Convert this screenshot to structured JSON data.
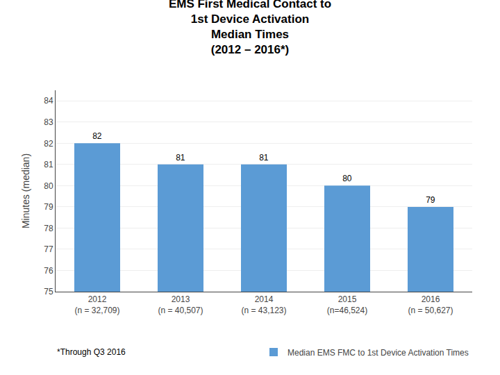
{
  "chart_data": {
    "type": "bar",
    "title": "EMS First Medical Contact to\n1st Device Activation\nMedian Times\n(2012 – 2016*)",
    "categories": [
      "2012\n(n = 32,709)",
      "2013\n(n = 40,507)",
      "2014\n(n = 43,123)",
      "2015\n(n=46,524)",
      "2016\n(n = 50,627)"
    ],
    "series": [
      {
        "name": "Median EMS FMC to 1st Device Activation Times",
        "color": "#5b9bd5",
        "values": [
          82,
          81,
          81,
          80,
          79
        ]
      }
    ],
    "ylabel": "Minutes (median)",
    "annotations": [
      "*Through Q3 2016"
    ],
    "ylim": [
      75,
      84.5
    ],
    "yticks": [
      75,
      76,
      77,
      78,
      79,
      80,
      81,
      82,
      83,
      84
    ],
    "grid": true,
    "legend": "bottom",
    "data_labels": true
  }
}
